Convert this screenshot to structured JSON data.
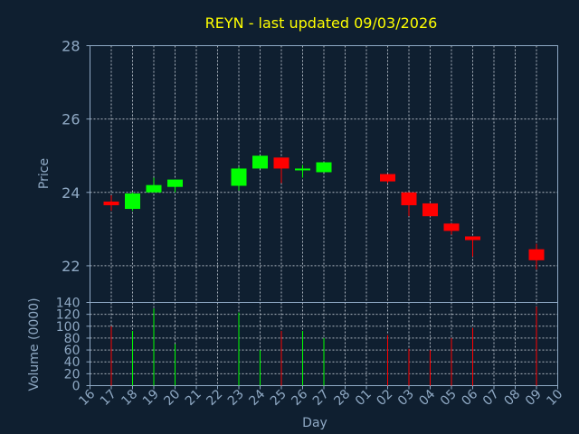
{
  "chart_data": {
    "type": "candlestick",
    "title": "REYN - last updated 09/03/2026",
    "xlabel": "Day",
    "x_tick_labels": [
      "16",
      "17",
      "18",
      "19",
      "20",
      "21",
      "22",
      "23",
      "24",
      "25",
      "26",
      "27",
      "28",
      "01",
      "02",
      "03",
      "04",
      "05",
      "06",
      "07",
      "08",
      "09",
      "10"
    ],
    "price": {
      "ylabel": "Price",
      "ylim": [
        21,
        28
      ],
      "yticks": [
        22,
        24,
        26,
        28
      ],
      "grid": true
    },
    "volume": {
      "ylabel": "Volume (0000)",
      "ylim": [
        0,
        140
      ],
      "yticks": [
        0,
        20,
        40,
        60,
        80,
        100,
        120,
        140
      ],
      "grid": true
    },
    "colors": {
      "up": "#00ff00",
      "down": "#ff0000",
      "title": "#ffff00",
      "axis": "#8fa9c4",
      "background": "#0f1f30"
    },
    "candles": [
      {
        "day": "17",
        "open": 23.75,
        "high": 23.92,
        "low": 23.5,
        "close": 23.65,
        "volume": 100
      },
      {
        "day": "18",
        "open": 23.55,
        "high": 24.0,
        "low": 23.5,
        "close": 23.97,
        "volume": 92
      },
      {
        "day": "19",
        "open": 24.0,
        "high": 24.4,
        "low": 24.0,
        "close": 24.2,
        "volume": 130
      },
      {
        "day": "20",
        "open": 24.15,
        "high": 24.35,
        "low": 24.0,
        "close": 24.35,
        "volume": 70
      },
      {
        "day": "23",
        "open": 24.18,
        "high": 24.7,
        "low": 24.05,
        "close": 24.65,
        "volume": 123
      },
      {
        "day": "24",
        "open": 24.65,
        "high": 25.0,
        "low": 24.65,
        "close": 25.0,
        "volume": 60
      },
      {
        "day": "25",
        "open": 24.95,
        "high": 24.95,
        "low": 24.25,
        "close": 24.65,
        "volume": 92
      },
      {
        "day": "26",
        "open": 24.6,
        "high": 24.75,
        "low": 24.4,
        "close": 24.65,
        "volume": 92
      },
      {
        "day": "27",
        "open": 24.55,
        "high": 24.82,
        "low": 24.55,
        "close": 24.82,
        "volume": 80
      },
      {
        "day": "02",
        "open": 24.5,
        "high": 24.5,
        "low": 24.25,
        "close": 24.3,
        "volume": 85
      },
      {
        "day": "03",
        "open": 24.0,
        "high": 24.0,
        "low": 23.35,
        "close": 23.65,
        "volume": 62
      },
      {
        "day": "04",
        "open": 23.7,
        "high": 23.7,
        "low": 23.35,
        "close": 23.35,
        "volume": 60
      },
      {
        "day": "05",
        "open": 23.15,
        "high": 23.15,
        "low": 22.85,
        "close": 22.95,
        "volume": 80
      },
      {
        "day": "06",
        "open": 22.8,
        "high": 22.8,
        "low": 22.25,
        "close": 22.7,
        "volume": 97
      },
      {
        "day": "09",
        "open": 22.45,
        "high": 22.6,
        "low": 21.9,
        "close": 22.15,
        "volume": 133
      }
    ]
  }
}
